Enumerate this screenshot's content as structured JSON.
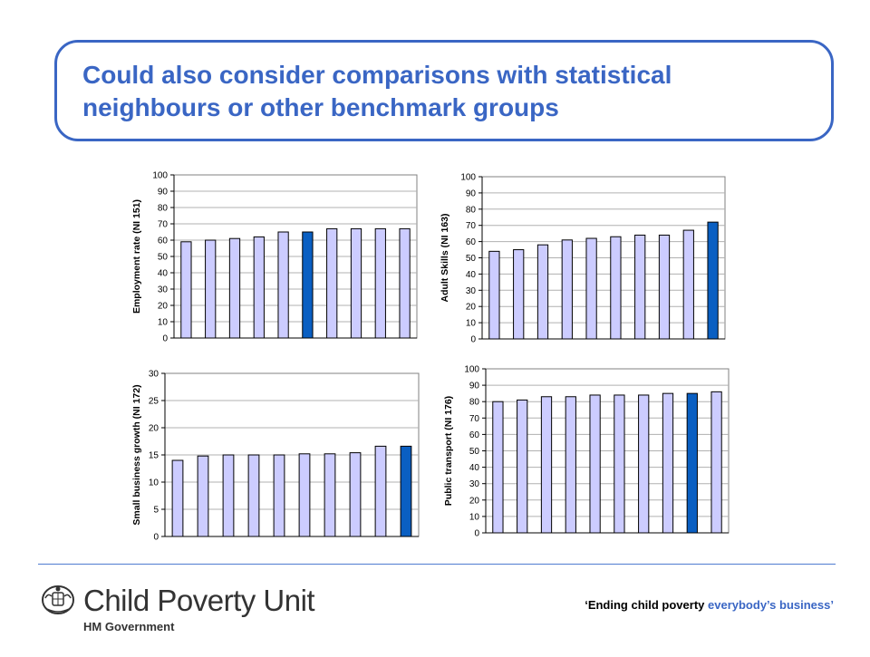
{
  "slide": {
    "title": "Could also consider comparisons with statistical neighbours or other benchmark groups",
    "tagline_a": "‘Ending child poverty",
    "tagline_b": "everybody’s business’",
    "logo_name": "Child Poverty Unit",
    "logo_gov": "HM Government",
    "accent_color": "#3a66c4",
    "icons": [
      "royal-crest-icon"
    ]
  },
  "chart_data": [
    {
      "type": "bar",
      "ylabel": "Employment rate (NI 151)",
      "ylim": [
        0,
        100
      ],
      "yticks": [
        0,
        10,
        20,
        30,
        40,
        50,
        60,
        70,
        80,
        90,
        100
      ],
      "values": [
        59,
        60,
        61,
        62,
        65,
        65,
        67,
        67,
        67,
        67
      ],
      "highlight_index": 5,
      "grid": true,
      "bar_color": "#ccccff",
      "highlight_color": "#0a5fc2"
    },
    {
      "type": "bar",
      "ylabel": "Adult Skills (NI 163)",
      "ylim": [
        0,
        100
      ],
      "yticks": [
        0,
        10,
        20,
        30,
        40,
        50,
        60,
        70,
        80,
        90,
        100
      ],
      "values": [
        54,
        55,
        58,
        61,
        62,
        63,
        64,
        64,
        67,
        72
      ],
      "highlight_index": 9,
      "grid": true,
      "bar_color": "#ccccff",
      "highlight_color": "#0a5fc2"
    },
    {
      "type": "bar",
      "ylabel": "Small business growth (NI 172)",
      "ylim": [
        0,
        30
      ],
      "yticks": [
        0,
        5,
        10,
        15,
        20,
        25,
        30
      ],
      "values": [
        14,
        14.8,
        15,
        15,
        15,
        15.2,
        15.2,
        15.4,
        16.6,
        16.6
      ],
      "highlight_index": 9,
      "grid": true,
      "bar_color": "#ccccff",
      "highlight_color": "#0a5fc2"
    },
    {
      "type": "bar",
      "ylabel": "Public transport (NI 176)",
      "ylim": [
        0,
        100
      ],
      "yticks": [
        0,
        10,
        20,
        30,
        40,
        50,
        60,
        70,
        80,
        90,
        100
      ],
      "values": [
        80,
        81,
        83,
        83,
        84,
        84,
        84,
        85,
        85,
        86
      ],
      "highlight_index": 8,
      "grid": true,
      "bar_color": "#ccccff",
      "highlight_color": "#0a5fc2"
    }
  ]
}
